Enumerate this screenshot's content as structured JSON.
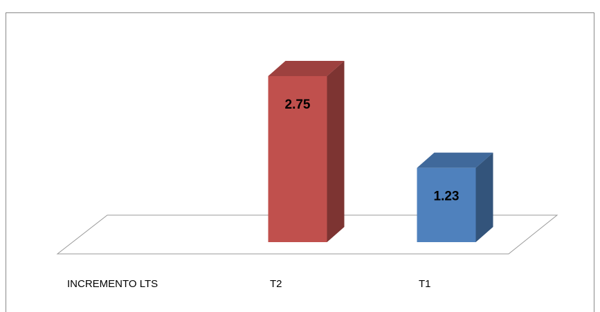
{
  "chart_data": {
    "type": "bar3d",
    "categories": [
      "INCREMENTO LTS",
      "T2",
      "T1"
    ],
    "values": [
      null,
      2.75,
      1.23
    ],
    "colors": [
      null,
      "#c0504d",
      "#4f81bd"
    ]
  }
}
